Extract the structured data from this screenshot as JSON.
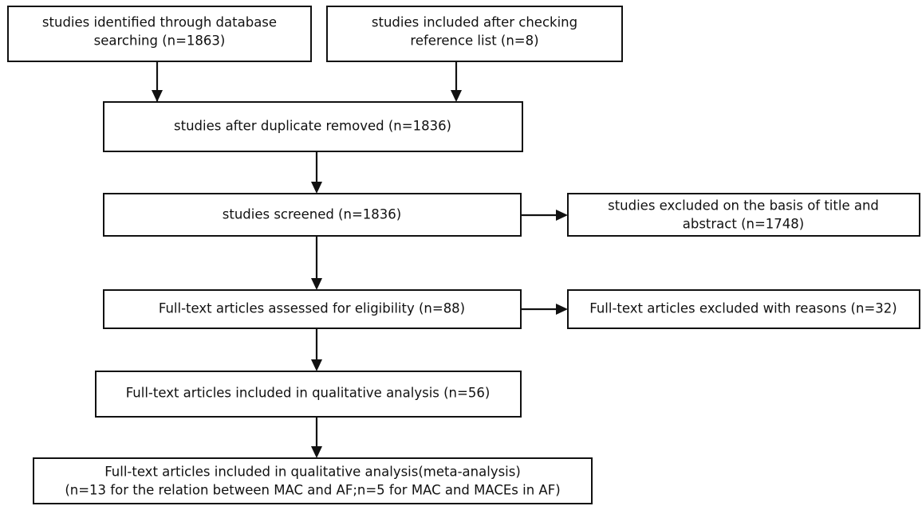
{
  "nodes": [
    {
      "lines": [
        "studies identified through database",
        "searching (n=1863)"
      ]
    },
    {
      "lines": [
        "studies included after checking",
        "reference list (n=8)"
      ]
    },
    {
      "lines": [
        "studies after duplicate removed (n=1836)"
      ]
    },
    {
      "lines": [
        "studies screened (n=1836)"
      ]
    },
    {
      "lines": [
        "studies excluded on the basis of title and",
        "abstract (n=1748)"
      ]
    },
    {
      "lines": [
        "Full-text articles assessed for eligibility (n=88)"
      ]
    },
    {
      "lines": [
        "Full-text articles excluded with reasons (n=32)"
      ]
    },
    {
      "lines": [
        "Full-text articles included in qualitative analysis (n=56)"
      ]
    },
    {
      "lines": [
        "Full-text articles included in qualitative analysis(meta-analysis)",
        "(n=13 for the relation between MAC and AF;n=5 for MAC and MACEs in AF)"
      ]
    }
  ]
}
